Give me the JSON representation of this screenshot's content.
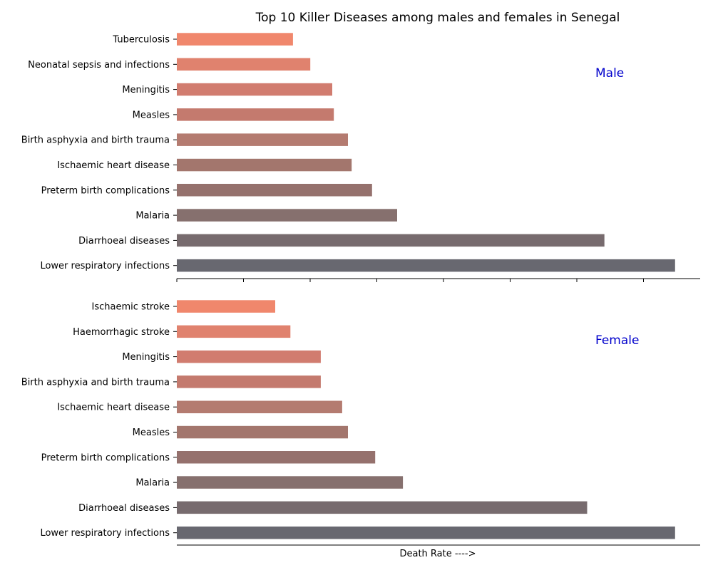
{
  "chart_data": {
    "type": "bar",
    "orientation": "horizontal",
    "title": "Top 10 Killer Diseases among males and females in Senegal",
    "xlabel": "Death Rate ---->",
    "grid": false,
    "xlim": [
      0,
      1
    ],
    "panels": [
      {
        "label": "Male",
        "categories": [
          "Tuberculosis",
          "Neonatal sepsis and infections",
          "Meningitis",
          "Measles",
          "Birth asphyxia and birth trauma",
          "Ischaemic heart disease",
          "Preterm birth complications",
          "Malaria",
          "Diarrhoeal diseases",
          "Lower respiratory infections"
        ],
        "values": [
          0.222,
          0.255,
          0.297,
          0.3,
          0.327,
          0.334,
          0.373,
          0.421,
          0.817,
          0.952
        ],
        "colors": [
          "#f0876c",
          "#e0826e",
          "#d17c6f",
          "#c47a6e",
          "#b47b70",
          "#a3766d",
          "#95716d",
          "#86706e",
          "#776b6e",
          "#686870"
        ]
      },
      {
        "label": "Female",
        "categories": [
          "Ischaemic stroke",
          "Haemorrhagic stroke",
          "Meningitis",
          "Birth asphyxia and birth trauma",
          "Ischaemic heart disease",
          "Measles",
          "Preterm birth complications",
          "Malaria",
          "Diarrhoeal diseases",
          "Lower respiratory infections"
        ],
        "values": [
          0.188,
          0.217,
          0.275,
          0.275,
          0.316,
          0.327,
          0.379,
          0.432,
          0.784,
          0.952
        ],
        "colors": [
          "#f0876c",
          "#e0826e",
          "#d17c6f",
          "#c47a6e",
          "#b47b70",
          "#a3766d",
          "#95716d",
          "#86706e",
          "#776b6e",
          "#686870"
        ]
      }
    ]
  }
}
